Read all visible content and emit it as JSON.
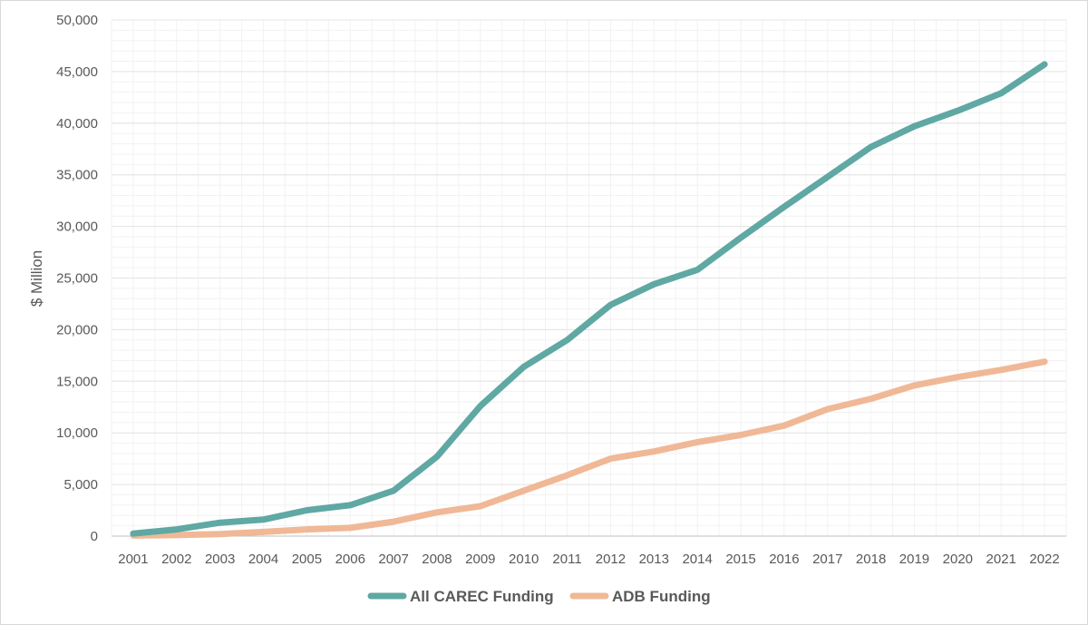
{
  "chart_data": {
    "type": "line",
    "title": "",
    "xlabel": "",
    "ylabel": "$ Million",
    "ylim": [
      0,
      50000
    ],
    "yticks": [
      "0",
      "5,000",
      "10,000",
      "15,000",
      "20,000",
      "25,000",
      "30,000",
      "35,000",
      "40,000",
      "45,000",
      "50,000"
    ],
    "categories": [
      "2001",
      "2002",
      "2003",
      "2004",
      "2005",
      "2006",
      "2007",
      "2008",
      "2009",
      "2010",
      "2011",
      "2012",
      "2013",
      "2014",
      "2015",
      "2016",
      "2017",
      "2018",
      "2019",
      "2020",
      "2021",
      "2022"
    ],
    "grid": true,
    "legend": "bottom",
    "series": [
      {
        "name": "All CAREC Funding",
        "color": "#5fa8a3",
        "values": [
          250,
          650,
          1300,
          1600,
          2500,
          3000,
          4400,
          7700,
          12600,
          16400,
          19000,
          22400,
          24400,
          25800,
          28900,
          31900,
          34800,
          37700,
          39700,
          41200,
          42900,
          45700
        ]
      },
      {
        "name": "ADB Funding",
        "color": "#f0b896",
        "values": [
          50,
          100,
          200,
          400,
          650,
          800,
          1400,
          2300,
          2900,
          4400,
          5900,
          7500,
          8200,
          9100,
          9800,
          10700,
          12300,
          13300,
          14600,
          15400,
          16100,
          16900
        ]
      }
    ]
  }
}
